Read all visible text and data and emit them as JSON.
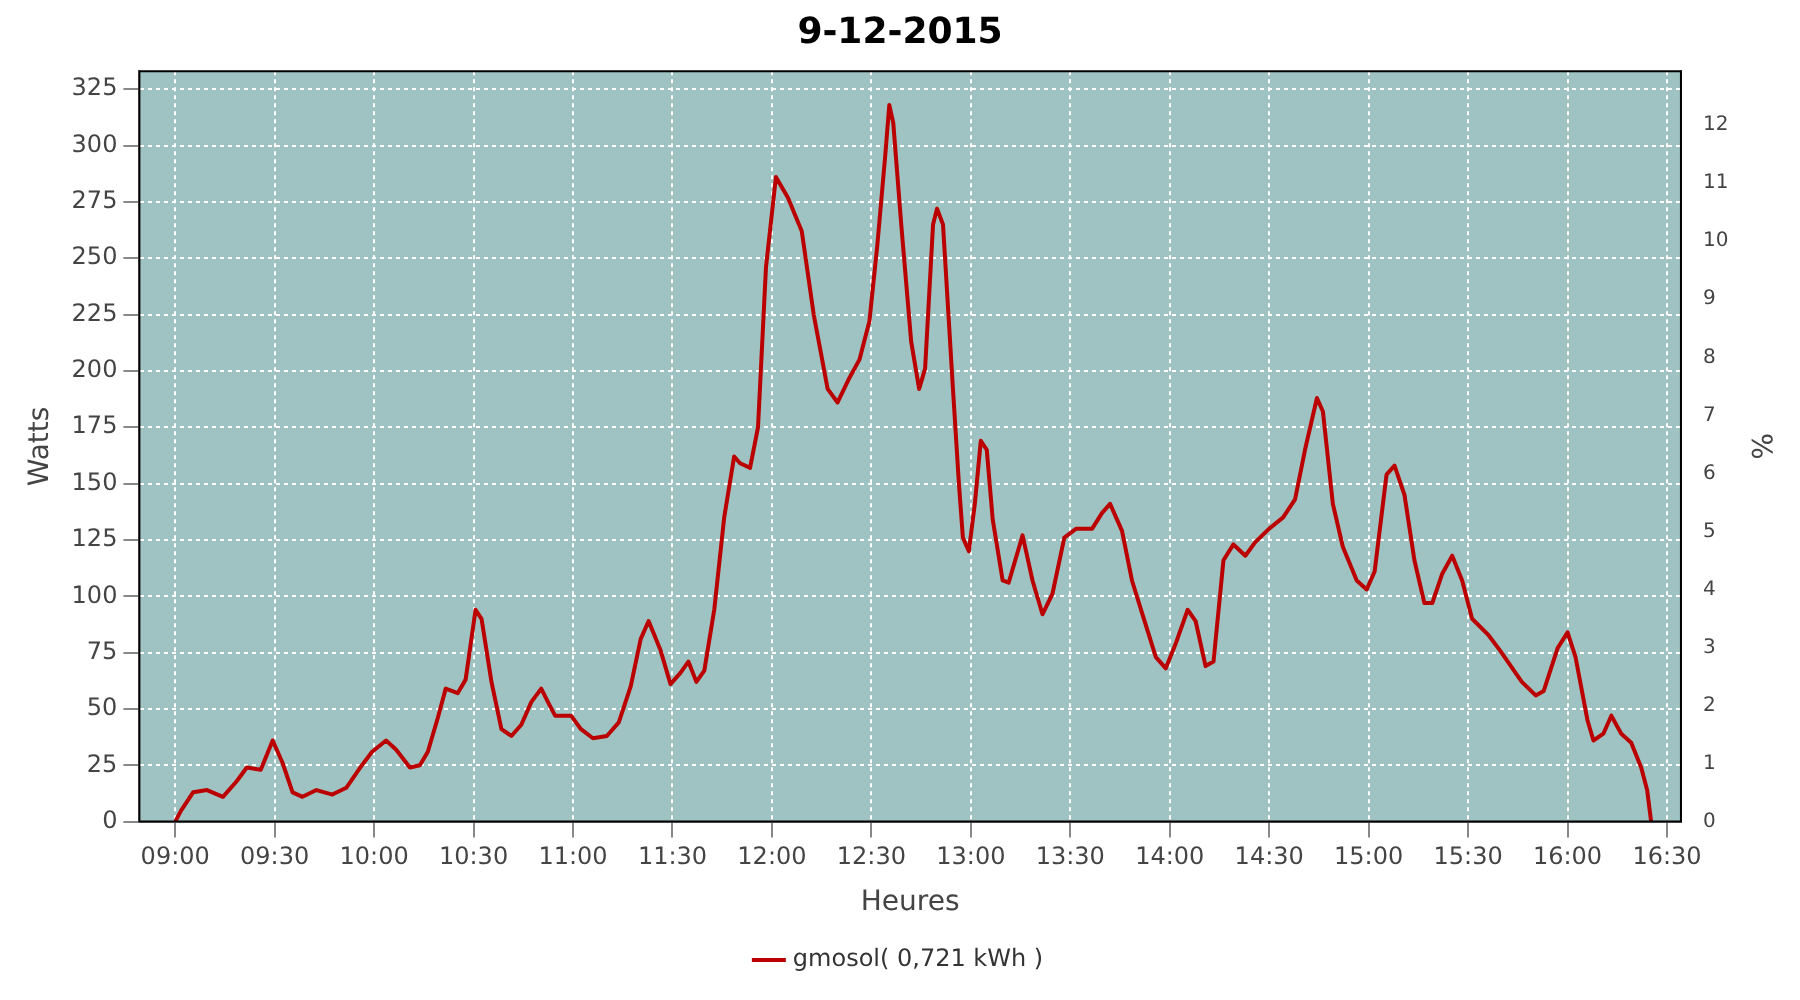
{
  "chart_data": {
    "type": "line",
    "title": "9-12-2015",
    "xlabel": "Heures",
    "ylabel": "Watts",
    "y2label": "%",
    "xlim": [
      8.82,
      16.57
    ],
    "xticks": [
      {
        "value": 9,
        "label": "09:00"
      },
      {
        "value": 9.5,
        "label": "09:30"
      },
      {
        "value": 10,
        "label": "10:00"
      },
      {
        "value": 10.5,
        "label": "10:30"
      },
      {
        "value": 11,
        "label": "11:00"
      },
      {
        "value": 11.5,
        "label": "11:30"
      },
      {
        "value": 12,
        "label": "12:00"
      },
      {
        "value": 12.5,
        "label": "12:30"
      },
      {
        "value": 13,
        "label": "13:00"
      },
      {
        "value": 13.5,
        "label": "13:30"
      },
      {
        "value": 14,
        "label": "14:00"
      },
      {
        "value": 14.5,
        "label": "14:30"
      },
      {
        "value": 15,
        "label": "15:00"
      },
      {
        "value": 15.5,
        "label": "15:30"
      },
      {
        "value": 16,
        "label": "16:00"
      },
      {
        "value": 16.5,
        "label": "16:30"
      }
    ],
    "ylim": [
      0,
      333
    ],
    "yticks": [
      0,
      25,
      50,
      75,
      100,
      125,
      150,
      175,
      200,
      225,
      250,
      275,
      300,
      325
    ],
    "y2lim": [
      0,
      12.93
    ],
    "y2ticks": [
      0,
      1,
      2,
      3,
      4,
      5,
      6,
      7,
      8,
      9,
      10,
      11,
      12
    ],
    "grid": true,
    "legend": "bottom",
    "marker": "none",
    "line_style": "solid",
    "series": [
      {
        "name": "gmosol( 0,721 kWh )",
        "color": "#bb0000",
        "x": [
          9.0,
          9.03,
          9.09,
          9.16,
          9.24,
          9.31,
          9.36,
          9.43,
          9.49,
          9.54,
          9.59,
          9.64,
          9.71,
          9.79,
          9.86,
          9.93,
          9.99,
          10.06,
          10.11,
          10.18,
          10.23,
          10.27,
          10.32,
          10.36,
          10.42,
          10.46,
          10.51,
          10.54,
          10.59,
          10.64,
          10.69,
          10.74,
          10.79,
          10.84,
          10.88,
          10.91,
          10.99,
          11.04,
          11.1,
          11.17,
          11.23,
          11.29,
          11.34,
          11.38,
          11.44,
          11.49,
          11.54,
          11.58,
          11.62,
          11.66,
          11.71,
          11.76,
          11.81,
          11.84,
          11.89,
          11.93,
          11.97,
          12.02,
          12.08,
          12.15,
          12.21,
          12.28,
          12.33,
          12.39,
          12.44,
          12.49,
          12.53,
          12.57,
          12.59,
          12.61,
          12.65,
          12.7,
          12.74,
          12.77,
          12.81,
          12.83,
          12.86,
          12.91,
          12.94,
          12.96,
          12.99,
          13.02,
          13.05,
          13.08,
          13.11,
          13.16,
          13.19,
          13.26,
          13.31,
          13.36,
          13.41,
          13.47,
          13.53,
          13.61,
          13.66,
          13.7,
          13.76,
          13.81,
          13.87,
          13.93,
          13.98,
          14.03,
          14.09,
          14.13,
          14.18,
          14.22,
          14.27,
          14.32,
          14.38,
          14.43,
          14.5,
          14.57,
          14.63,
          14.68,
          14.74,
          14.77,
          14.82,
          14.87,
          14.94,
          14.99,
          15.03,
          15.09,
          15.13,
          15.18,
          15.23,
          15.28,
          15.32,
          15.37,
          15.42,
          15.47,
          15.52,
          15.6,
          15.66,
          15.77,
          15.84,
          15.88,
          15.95,
          16.0,
          16.04,
          16.1,
          16.13,
          16.18,
          16.22,
          16.27,
          16.32,
          16.37,
          16.4,
          16.42
        ],
        "values": [
          0,
          5,
          13,
          14,
          11,
          18,
          24,
          23,
          36,
          26,
          13,
          11,
          14,
          12,
          15,
          24,
          31,
          36,
          32,
          24,
          25,
          31,
          46,
          59,
          57,
          63,
          94,
          90,
          62,
          41,
          38,
          43,
          53,
          59,
          52,
          47,
          47,
          41,
          37,
          38,
          44,
          60,
          81,
          89,
          76,
          61,
          66,
          71,
          62,
          67,
          94,
          135,
          162,
          159,
          157,
          175,
          246,
          286,
          277,
          262,
          225,
          192,
          186,
          197,
          205,
          222,
          256,
          296,
          318,
          310,
          265,
          213,
          192,
          201,
          265,
          272,
          265,
          192,
          150,
          126,
          120,
          141,
          169,
          165,
          134,
          107,
          106,
          127,
          107,
          92,
          101,
          126,
          130,
          130,
          137,
          141,
          129,
          107,
          90,
          73,
          68,
          79,
          94,
          89,
          69,
          71,
          116,
          123,
          118,
          124,
          130,
          135,
          143,
          165,
          188,
          182,
          141,
          122,
          107,
          103,
          111,
          154,
          158,
          145,
          116,
          97,
          97,
          110,
          118,
          107,
          90,
          83,
          76,
          62,
          56,
          58,
          77,
          84,
          73,
          45,
          36,
          39,
          47,
          39,
          35,
          24,
          14,
          0
        ]
      }
    ]
  }
}
